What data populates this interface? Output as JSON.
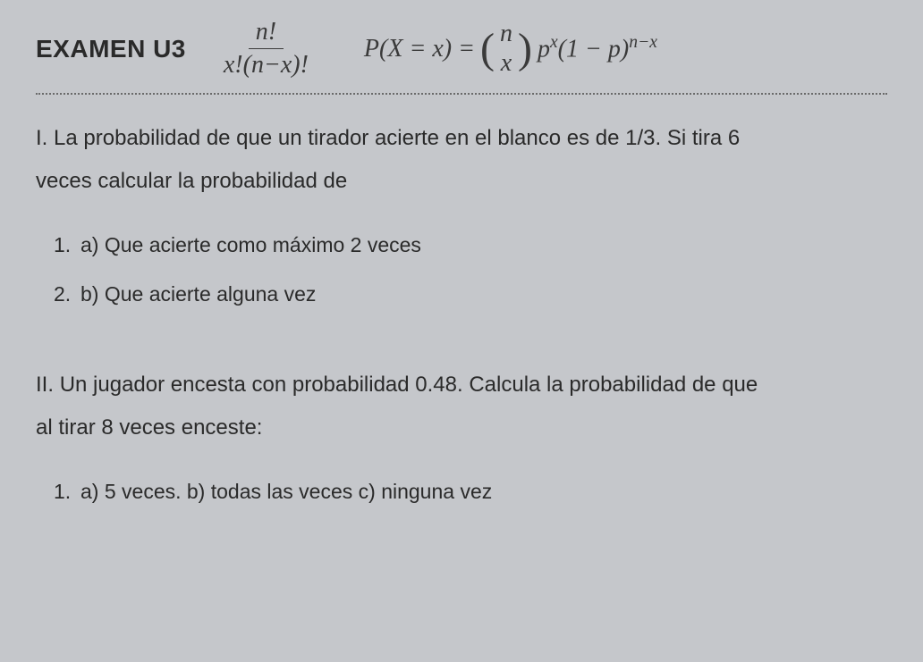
{
  "header": {
    "exam_title": "EXAMEN U3",
    "formula_fraction": {
      "numerator": "n!",
      "denominator": "x!(n−x)!"
    },
    "formula_binomial": {
      "lhs": "P(X = x) = ",
      "binom_top": "n",
      "binom_bottom": "x",
      "p_base": "p",
      "p_exp": "x",
      "q_base": "(1 − p)",
      "q_exp": "n−x"
    }
  },
  "question1": {
    "number": "I.",
    "text_line1": "La probabilidad de que un tirador acierte en el blanco es de 1/3. Si tira 6",
    "text_line2": "veces calcular la probabilidad de",
    "subitems": [
      {
        "num": "1.",
        "text": "a) Que acierte como máximo 2 veces"
      },
      {
        "num": "2.",
        "text": "b) Que acierte alguna vez"
      }
    ]
  },
  "question2": {
    "number": "II.",
    "text_line1": "Un jugador encesta con probabilidad 0.48. Calcula la probabilidad de que",
    "text_line2": "al tirar 8 veces enceste:",
    "subitems": [
      {
        "num": "1.",
        "text": "a) 5 veces. b) todas las veces c) ninguna vez"
      }
    ]
  },
  "styling": {
    "background_color": "#c5c7cb",
    "text_color": "#2a2a2a",
    "formula_color": "#3a3a3a",
    "dotted_color": "#6a6a6a",
    "title_fontsize": 28,
    "body_fontsize": 24,
    "subitem_fontsize": 23,
    "formula_fontsize": 28
  }
}
